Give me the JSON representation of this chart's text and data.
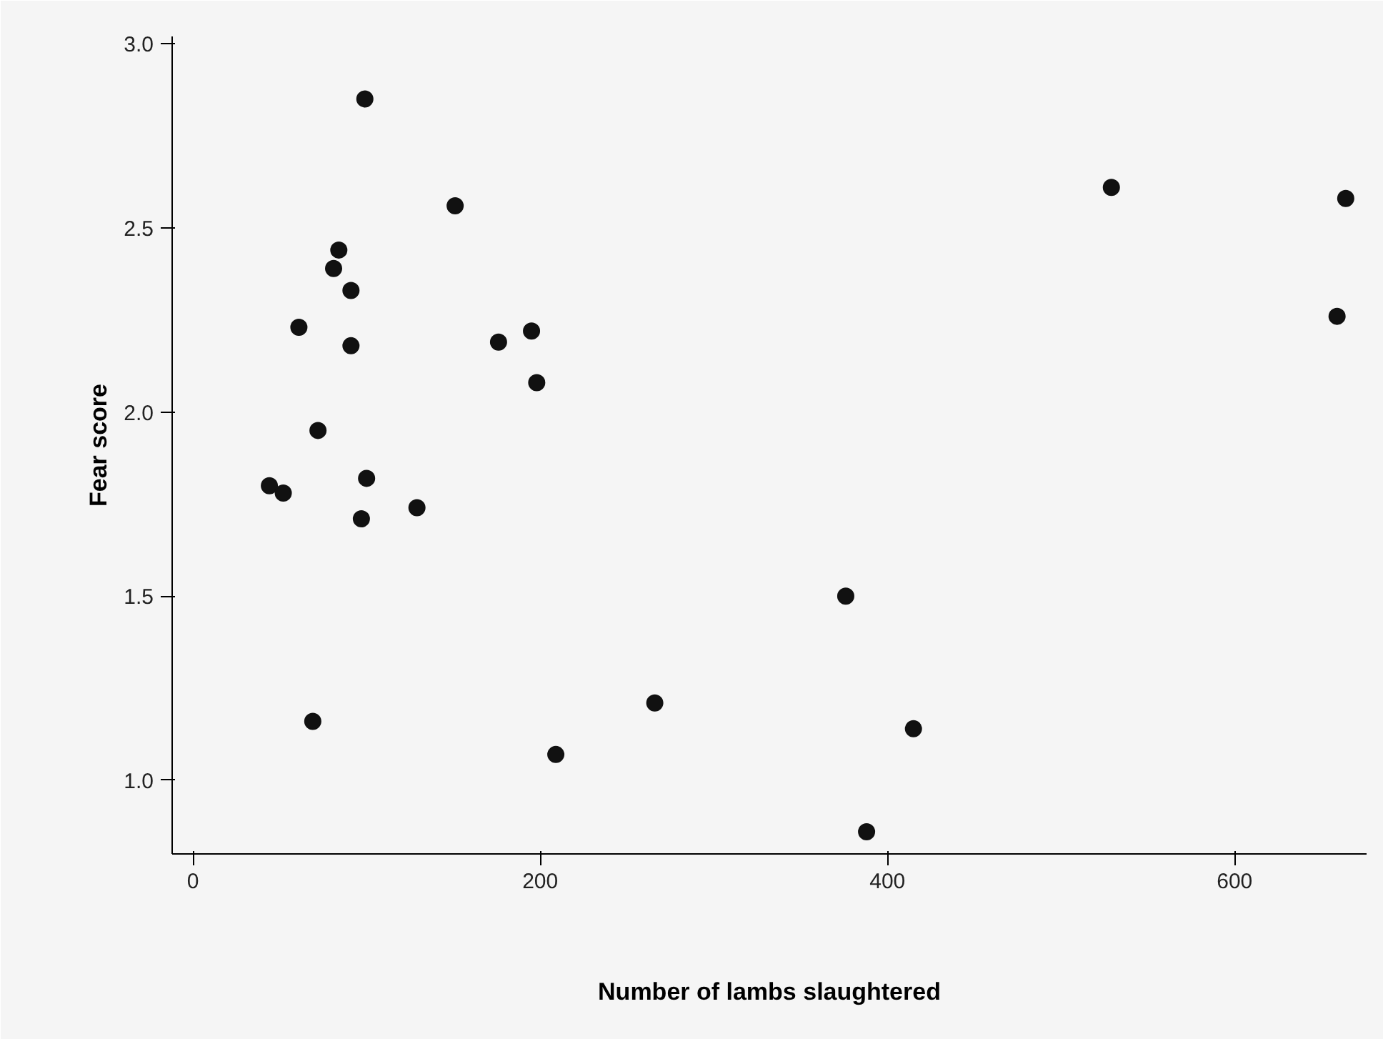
{
  "chart_data": {
    "type": "scatter",
    "xlabel": "Number of lambs slaughtered",
    "ylabel": "Fear score",
    "x": [
      99,
      151,
      529,
      664,
      659,
      84,
      81,
      91,
      61,
      91,
      176,
      195,
      198,
      72,
      44,
      52,
      100,
      129,
      97,
      376,
      266,
      69,
      209,
      415,
      388
    ],
    "values": [
      2.85,
      2.56,
      2.61,
      2.58,
      2.26,
      2.44,
      2.39,
      2.33,
      2.23,
      2.18,
      2.19,
      2.22,
      2.08,
      1.95,
      1.8,
      1.78,
      1.82,
      1.74,
      1.71,
      1.5,
      1.21,
      1.16,
      1.07,
      1.14,
      0.86
    ],
    "color": "#111111",
    "marker": "circle",
    "xlim": [
      -12,
      676
    ],
    "ylim": [
      0.8,
      3.02
    ],
    "xticks": [
      0,
      200,
      400,
      600
    ],
    "yticks": [
      {
        "value": 1.0,
        "label": "1.0"
      },
      {
        "value": 1.5,
        "label": "1.5"
      },
      {
        "value": 2.0,
        "label": "2.0"
      },
      {
        "value": 2.5,
        "label": "2.5"
      },
      {
        "value": 3.0,
        "label": "3.0"
      }
    ],
    "grid": false
  }
}
